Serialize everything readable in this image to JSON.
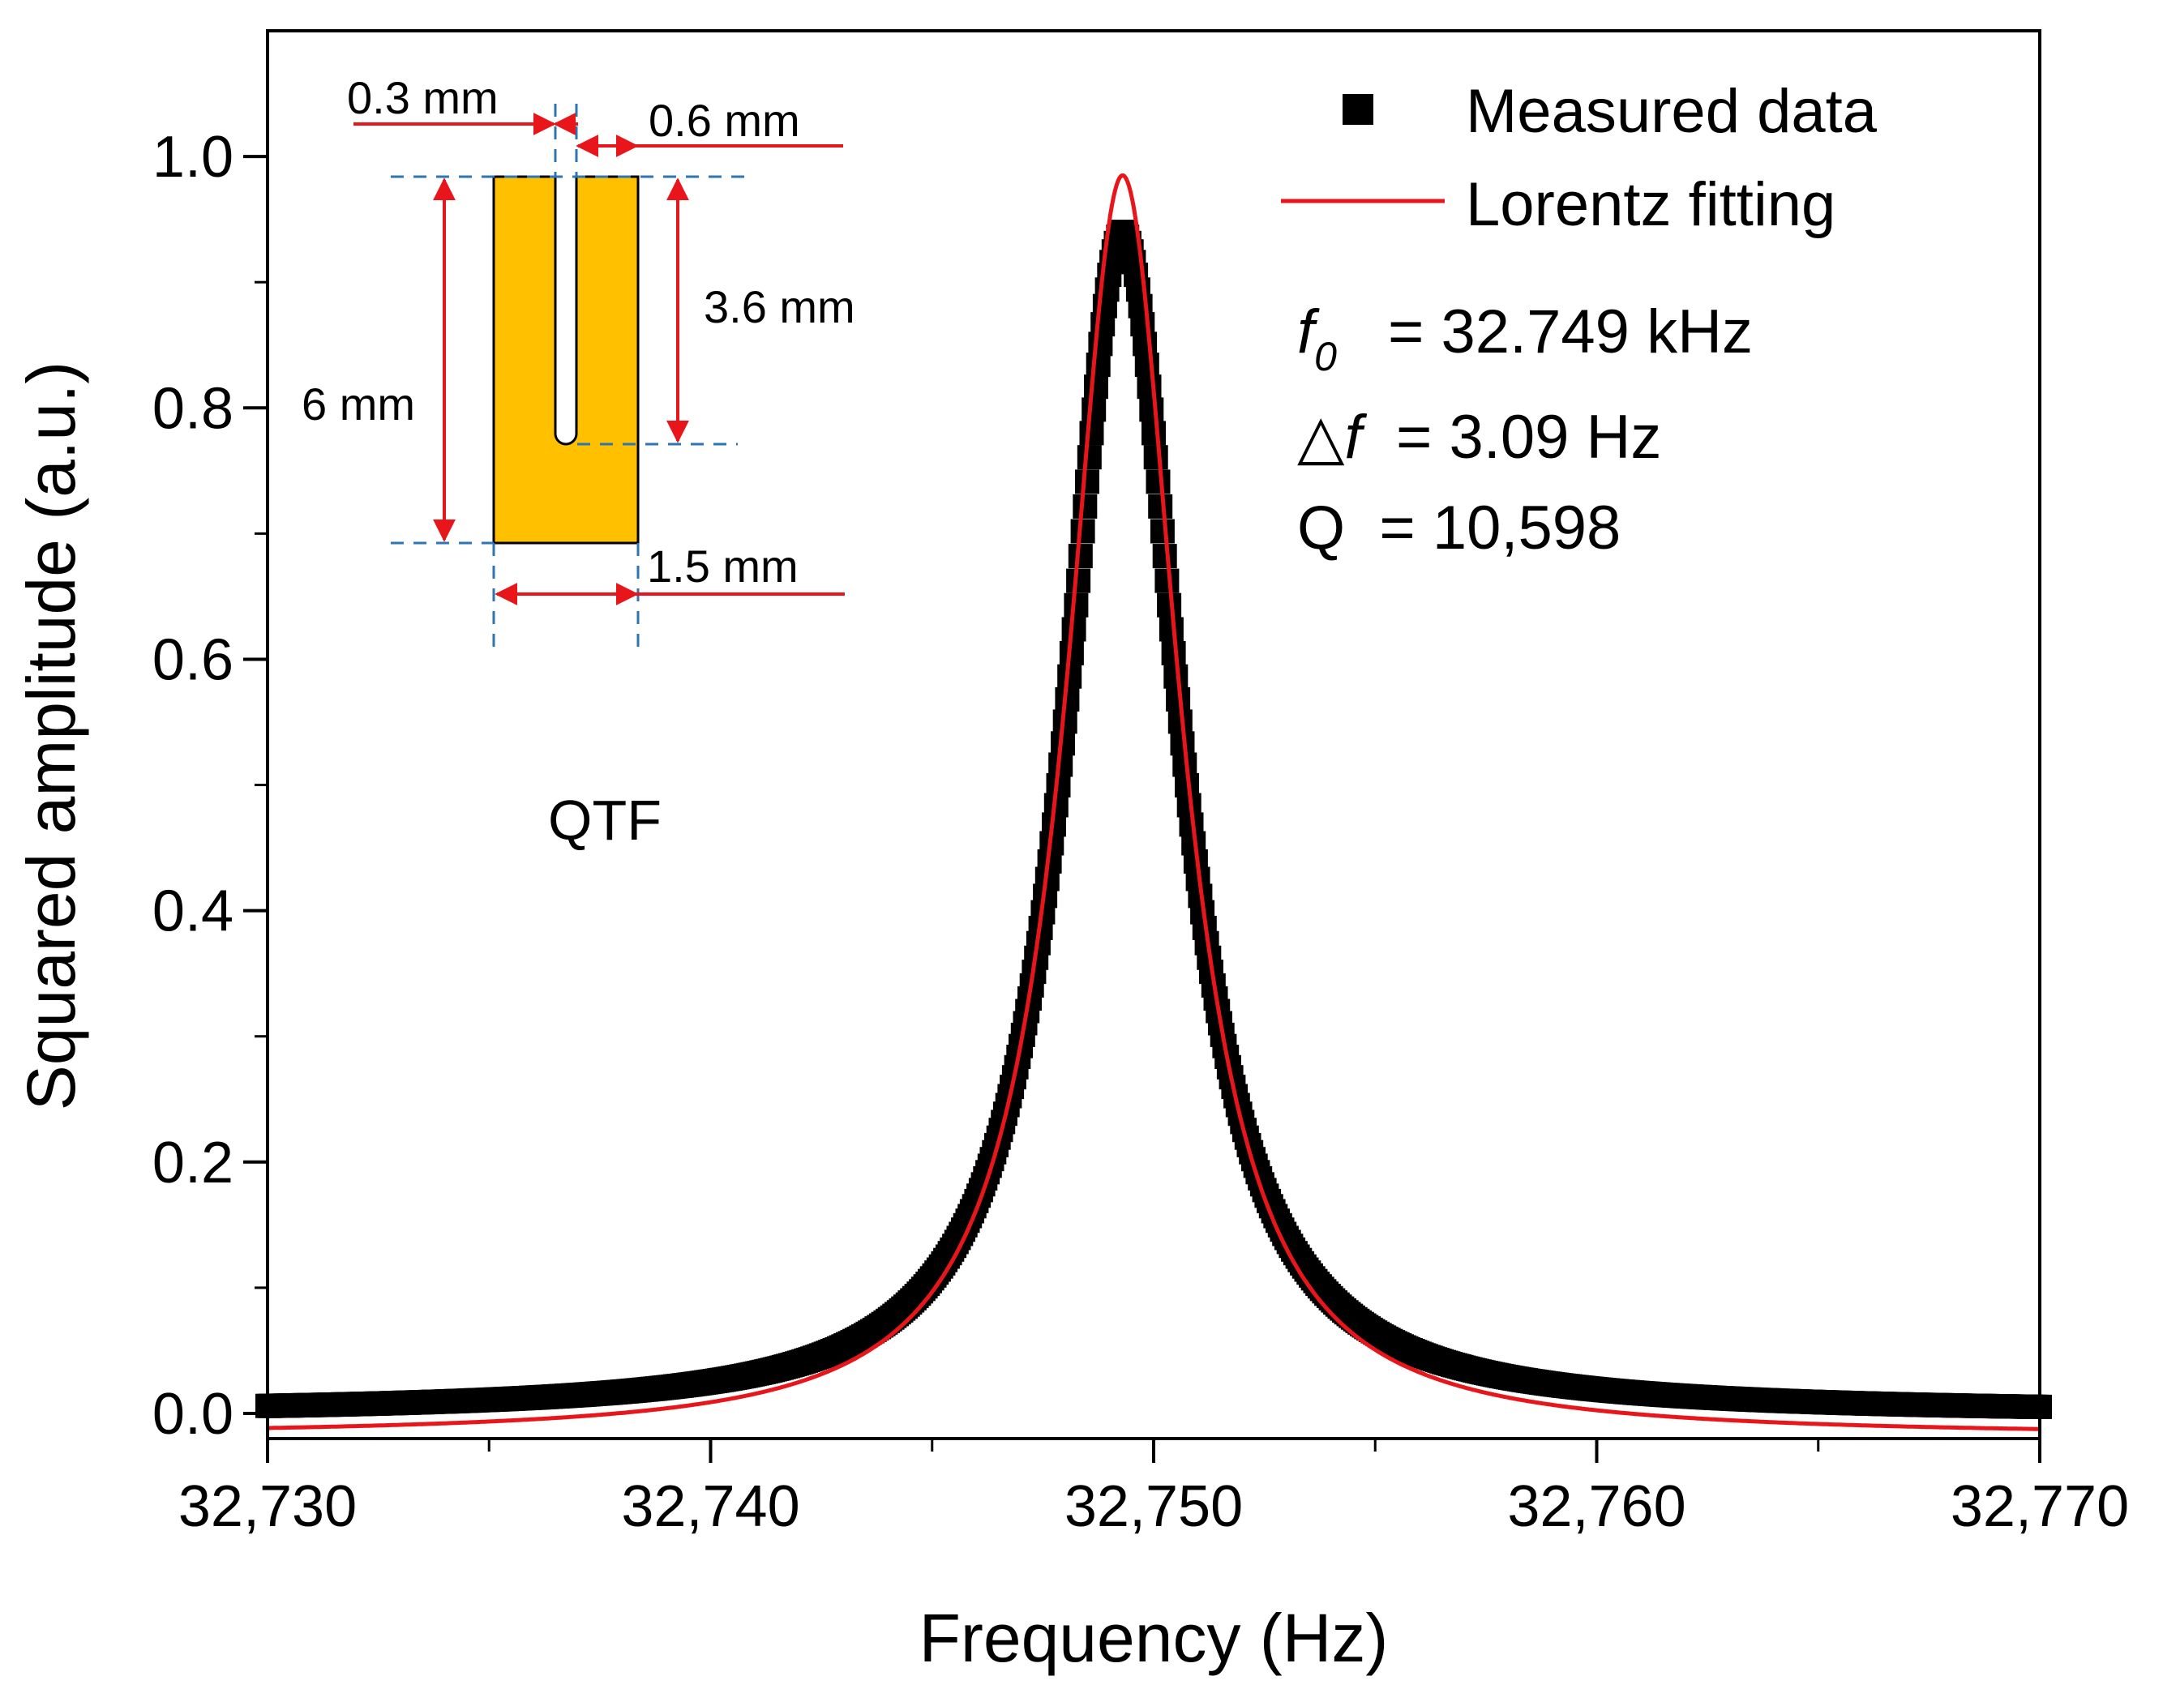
{
  "chart_data": {
    "type": "scatter",
    "xlabel": "Frequency (Hz)",
    "ylabel": "Squared amplitude (a.u.)",
    "xlim": [
      32730,
      32770
    ],
    "ylim": [
      -0.02,
      1.1
    ],
    "xticks": [
      32730,
      32740,
      32750,
      32760,
      32770
    ],
    "xtick_labels": [
      "32,730",
      "32,740",
      "32,750",
      "32,760",
      "32,770"
    ],
    "yticks": [
      0.0,
      0.2,
      0.4,
      0.6,
      0.8,
      1.0
    ],
    "ytick_labels": [
      "0.0",
      "0.2",
      "0.4",
      "0.6",
      "0.8",
      "1.0"
    ],
    "grid": false,
    "legend_position": "top-right",
    "series": [
      {
        "name": "Measured data",
        "kind": "markers",
        "marker": "square",
        "color": "#000000",
        "model": "lorentzian",
        "peak": 0.94,
        "center": 32749.3,
        "fwhm": 3.09,
        "offset": 0.0,
        "x_start": 32730,
        "x_end": 32770,
        "points": [
          [
            32730.0,
            0.006
          ],
          [
            32735.0,
            0.011
          ],
          [
            32740.0,
            0.023
          ],
          [
            32743.0,
            0.047
          ],
          [
            32745.0,
            0.11
          ],
          [
            32746.0,
            0.176
          ],
          [
            32747.0,
            0.29
          ],
          [
            32747.5,
            0.38
          ],
          [
            32748.0,
            0.51
          ],
          [
            32748.5,
            0.73
          ],
          [
            32749.0,
            0.902
          ],
          [
            32749.3,
            0.94
          ],
          [
            32749.6,
            0.91
          ],
          [
            32750.0,
            0.805
          ],
          [
            32750.5,
            0.6
          ],
          [
            32751.0,
            0.43
          ],
          [
            32751.5,
            0.31
          ],
          [
            32752.0,
            0.23
          ],
          [
            32753.0,
            0.13
          ],
          [
            32755.0,
            0.058
          ],
          [
            32760.0,
            0.018
          ],
          [
            32765.0,
            0.009
          ],
          [
            32770.0,
            0.005
          ]
        ]
      },
      {
        "name": "Lorentz fitting",
        "kind": "line",
        "color": "#e8151b",
        "model": "lorentzian",
        "peak": 0.985,
        "center": 32749.3,
        "fwhm": 3.09,
        "offset": -0.018,
        "x_start": 32730,
        "x_end": 32770
      }
    ],
    "annotations": {
      "f0_symbol": "f",
      "f0_subscript": "0",
      "f0_text": "= 32.749 kHz",
      "df_delta": "△",
      "df_symbol": "f",
      "df_text": "= 3.09 Hz",
      "q_text": "Q  = 10,598"
    },
    "inset": {
      "title": "QTF",
      "fill_color": "#ffc000",
      "dim_color": "#e8151b",
      "guide_color": "#2e75b6",
      "labels": {
        "gap": "0.3 mm",
        "prong": "0.6 mm",
        "slot_length": "3.6 mm",
        "height": "6 mm",
        "width": "1.5 mm"
      }
    }
  }
}
